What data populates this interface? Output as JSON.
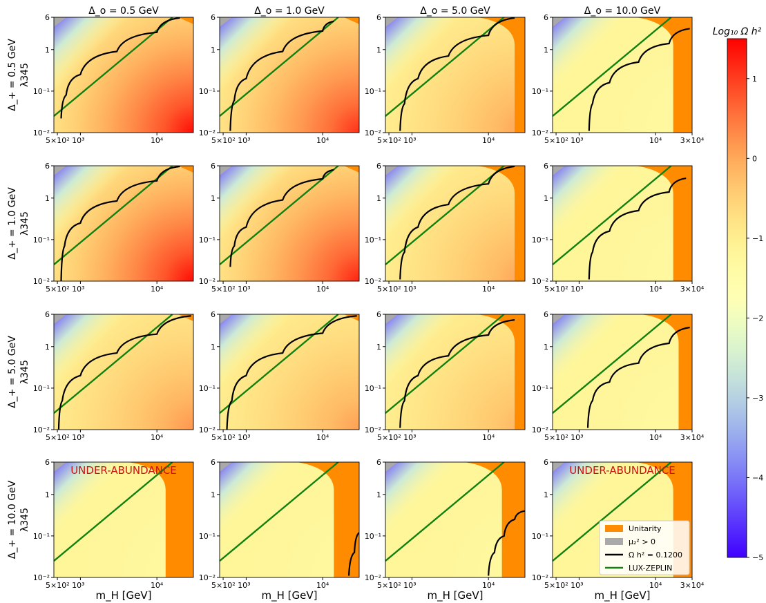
{
  "chart_data": {
    "type": "heatmap",
    "layout": "4x4 grid of contour panels sharing one colorbar",
    "column_titles": [
      "Δ_o = 0.5 GeV",
      "Δ_o = 1.0 GeV",
      "Δ_o = 5.0 GeV",
      "Δ_o = 10.0 GeV"
    ],
    "row_titles": [
      "Δ_+ = 0.5 GeV",
      "Δ_+ = 1.0 GeV",
      "Δ_+ = 5.0 GeV",
      "Δ_+ = 10.0 GeV"
    ],
    "ylabel": "λ345",
    "xlabel": "m_H [GeV]",
    "xscale": "log",
    "yscale": "log",
    "y_ticks": [
      "10⁻²",
      "10⁻¹",
      "1",
      "6"
    ],
    "x_ticks_default": [
      "5×10² 10³",
      "10⁴"
    ],
    "x_ticks_last_column": [
      "5×10² 10³",
      "10⁴",
      "3×10⁴"
    ],
    "xlim": [
      450,
      30000
    ],
    "ylim": [
      0.01,
      6
    ],
    "colorbar": {
      "label": "Log₁₀ Ω h²",
      "range": [
        -5,
        1.5
      ],
      "ticks": [
        "1",
        "0",
        "−1",
        "−2",
        "−3",
        "−4",
        "−5"
      ],
      "colormap": "rainbow"
    },
    "annotations": [
      {
        "panel": [
          3,
          0
        ],
        "text": "UNDER-ABUNDANCE",
        "color": "#cc1111"
      },
      {
        "panel": [
          3,
          3
        ],
        "text": "UNDER-ABUNDANCE",
        "color": "#cc1111"
      }
    ],
    "legend": {
      "placement": "lower-right of bottom-right panel",
      "entries": [
        {
          "label": "Unitarity",
          "type": "patch",
          "color": "#ff8c00"
        },
        {
          "label": "μ₂² > 0",
          "type": "patch",
          "color": "#a9a9a9"
        },
        {
          "label": "Ω h² = 0.1200",
          "type": "line",
          "color": "#000000"
        },
        {
          "label": "LUX-ZEPLIN",
          "type": "line",
          "color": "#108010"
        }
      ]
    },
    "panels": [
      {
        "row": 0,
        "col": 0,
        "max_log_omega": 1.4,
        "unitarity_from_mH": null,
        "relic_curve": [
          [
            560,
            0.022
          ],
          [
            650,
            0.08
          ],
          [
            1000,
            0.25
          ],
          [
            3000,
            0.9
          ],
          [
            10000,
            2.6
          ],
          [
            20000,
            5.8
          ]
        ],
        "lz_line": [
          [
            450,
            0.025
          ],
          [
            16000,
            6
          ]
        ]
      },
      {
        "row": 0,
        "col": 1,
        "max_log_omega": 1.1,
        "unitarity_from_mH": null,
        "relic_curve": [
          [
            620,
            0.011
          ],
          [
            700,
            0.06
          ],
          [
            1000,
            0.2
          ],
          [
            3000,
            0.9
          ],
          [
            10000,
            2.8
          ],
          [
            14000,
            4.8
          ]
        ],
        "lz_line": [
          [
            450,
            0.025
          ],
          [
            16000,
            6
          ]
        ]
      },
      {
        "row": 0,
        "col": 2,
        "max_log_omega": 0.1,
        "unitarity_from_mH": 22000,
        "relic_curve": [
          [
            700,
            0.011
          ],
          [
            800,
            0.05
          ],
          [
            1200,
            0.2
          ],
          [
            3000,
            0.7
          ],
          [
            10000,
            2.2
          ],
          [
            22000,
            5.8
          ]
        ],
        "lz_line": [
          [
            450,
            0.025
          ],
          [
            16000,
            6
          ]
        ]
      },
      {
        "row": 0,
        "col": 3,
        "max_log_omega": -1.3,
        "unitarity_from_mH": 17000,
        "relic_curve": [
          [
            1350,
            0.011
          ],
          [
            1500,
            0.05
          ],
          [
            2500,
            0.16
          ],
          [
            6000,
            0.5
          ],
          [
            15000,
            1.4
          ],
          [
            28000,
            3.2
          ]
        ],
        "lz_line": [
          [
            450,
            0.025
          ],
          [
            16000,
            6
          ]
        ]
      },
      {
        "row": 1,
        "col": 0,
        "max_log_omega": 1.4,
        "unitarity_from_mH": null,
        "relic_curve": [
          [
            560,
            0.01
          ],
          [
            620,
            0.07
          ],
          [
            1000,
            0.25
          ],
          [
            3000,
            0.85
          ],
          [
            10000,
            2.6
          ],
          [
            20000,
            5.8
          ]
        ],
        "lz_line": [
          [
            450,
            0.025
          ],
          [
            16000,
            6
          ]
        ]
      },
      {
        "row": 1,
        "col": 1,
        "max_log_omega": 1.2,
        "unitarity_from_mH": null,
        "relic_curve": [
          [
            620,
            0.022
          ],
          [
            700,
            0.07
          ],
          [
            1000,
            0.2
          ],
          [
            3000,
            0.9
          ],
          [
            10000,
            2.9
          ],
          [
            14000,
            4.8
          ]
        ],
        "lz_line": [
          [
            450,
            0.025
          ],
          [
            16000,
            6
          ]
        ]
      },
      {
        "row": 1,
        "col": 2,
        "max_log_omega": 0.1,
        "unitarity_from_mH": 22000,
        "relic_curve": [
          [
            700,
            0.011
          ],
          [
            800,
            0.05
          ],
          [
            1200,
            0.2
          ],
          [
            3000,
            0.7
          ],
          [
            10000,
            2.2
          ],
          [
            22000,
            5.8
          ]
        ],
        "lz_line": [
          [
            450,
            0.025
          ],
          [
            16000,
            6
          ]
        ]
      },
      {
        "row": 1,
        "col": 3,
        "max_log_omega": -1.3,
        "unitarity_from_mH": 17000,
        "relic_curve": [
          [
            1350,
            0.011
          ],
          [
            1500,
            0.05
          ],
          [
            2500,
            0.16
          ],
          [
            6000,
            0.5
          ],
          [
            15000,
            1.4
          ],
          [
            25000,
            3.0
          ]
        ],
        "lz_line": [
          [
            450,
            0.025
          ],
          [
            16000,
            6
          ]
        ]
      },
      {
        "row": 2,
        "col": 0,
        "max_log_omega": 0.2,
        "unitarity_from_mH": null,
        "relic_curve": [
          [
            520,
            0.01
          ],
          [
            580,
            0.05
          ],
          [
            1000,
            0.2
          ],
          [
            3000,
            0.7
          ],
          [
            10000,
            2.0
          ],
          [
            28000,
            5.5
          ]
        ],
        "lz_line": [
          [
            450,
            0.025
          ],
          [
            16000,
            6
          ]
        ]
      },
      {
        "row": 2,
        "col": 1,
        "max_log_omega": 0.1,
        "unitarity_from_mH": null,
        "relic_curve": [
          [
            560,
            0.01
          ],
          [
            650,
            0.05
          ],
          [
            1000,
            0.2
          ],
          [
            3000,
            0.7
          ],
          [
            10000,
            2.1
          ],
          [
            28000,
            5.5
          ]
        ],
        "lz_line": [
          [
            450,
            0.025
          ],
          [
            16000,
            6
          ]
        ]
      },
      {
        "row": 2,
        "col": 2,
        "max_log_omega": -0.1,
        "unitarity_from_mH": 22000,
        "relic_curve": [
          [
            700,
            0.011
          ],
          [
            800,
            0.05
          ],
          [
            1200,
            0.2
          ],
          [
            3000,
            0.6
          ],
          [
            10000,
            1.9
          ],
          [
            22000,
            4.4
          ]
        ],
        "lz_line": [
          [
            450,
            0.025
          ],
          [
            16000,
            6
          ]
        ]
      },
      {
        "row": 2,
        "col": 3,
        "max_log_omega": -1.3,
        "unitarity_from_mH": 20000,
        "relic_curve": [
          [
            1300,
            0.011
          ],
          [
            1500,
            0.05
          ],
          [
            2500,
            0.14
          ],
          [
            6000,
            0.4
          ],
          [
            15000,
            1.2
          ],
          [
            28000,
            2.9
          ]
        ],
        "lz_line": [
          [
            450,
            0.025
          ],
          [
            16000,
            6
          ]
        ]
      },
      {
        "row": 3,
        "col": 0,
        "max_log_omega": -1.3,
        "unitarity_from_mH": 13000,
        "relic_curve": [],
        "lz_line": [
          [
            450,
            0.025
          ],
          [
            16000,
            6
          ]
        ]
      },
      {
        "row": 3,
        "col": 1,
        "max_log_omega": -1.3,
        "unitarity_from_mH": 14000,
        "relic_curve": [
          [
            22000,
            0.011
          ],
          [
            26000,
            0.04
          ],
          [
            30000,
            0.12
          ]
        ],
        "lz_line": [
          [
            450,
            0.025
          ],
          [
            16000,
            6
          ]
        ]
      },
      {
        "row": 3,
        "col": 2,
        "max_log_omega": -1.3,
        "unitarity_from_mH": 15000,
        "relic_curve": [
          [
            10000,
            0.011
          ],
          [
            12000,
            0.04
          ],
          [
            16000,
            0.1
          ],
          [
            22000,
            0.25
          ],
          [
            30000,
            0.4
          ]
        ],
        "lz_line": [
          [
            450,
            0.025
          ],
          [
            16000,
            6
          ]
        ]
      },
      {
        "row": 3,
        "col": 3,
        "max_log_omega": -1.3,
        "unitarity_from_mH": 17000,
        "relic_curve": [],
        "lz_line": [
          [
            450,
            0.025
          ],
          [
            16000,
            6
          ]
        ]
      }
    ]
  }
}
